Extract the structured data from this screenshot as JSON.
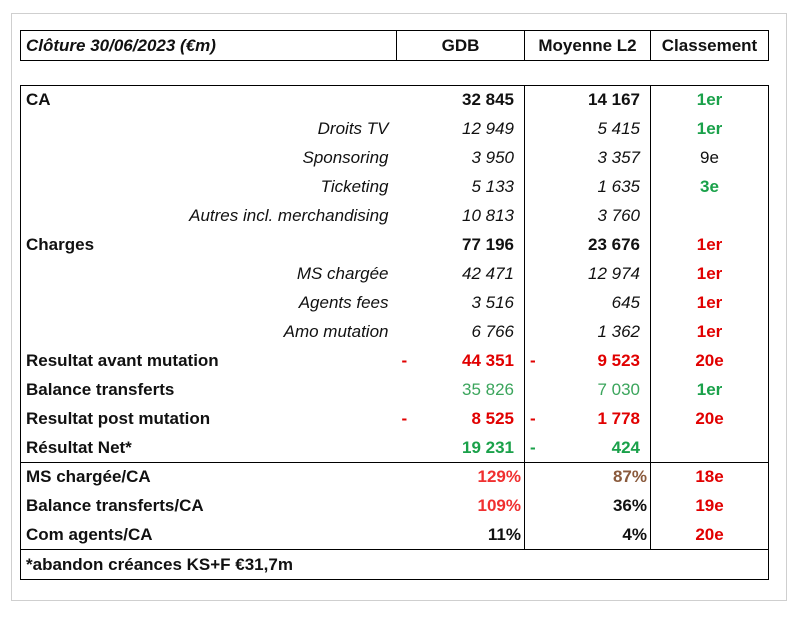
{
  "header": {
    "title": "Clôture 30/06/2023 (€m)",
    "col_gdb": "GDB",
    "col_avg": "Moyenne L2",
    "col_rank": "Classement"
  },
  "rows": [
    {
      "label": "CA",
      "gdb": "32 845",
      "avg": "14 167",
      "rank": "1er",
      "rank_color": "#1aa14a"
    },
    {
      "label": "Droits TV",
      "gdb": "12 949",
      "avg": "5 415",
      "rank": "1er",
      "rank_color": "#1aa14a"
    },
    {
      "label": "Sponsoring",
      "gdb": "3 950",
      "avg": "3 357",
      "rank": "9e",
      "rank_color": "#111111"
    },
    {
      "label": "Ticketing",
      "gdb": "5 133",
      "avg": "1 635",
      "rank": "3e",
      "rank_color": "#1aa14a"
    },
    {
      "label": "Autres incl. merchandising",
      "gdb": "10 813",
      "avg": "3 760",
      "rank": ""
    },
    {
      "label": "Charges",
      "gdb": "77 196",
      "avg": "23 676",
      "rank": "1er",
      "rank_color": "#e10000"
    },
    {
      "label": "MS chargée",
      "gdb": "42 471",
      "avg": "12 974",
      "rank": "1er",
      "rank_color": "#e10000"
    },
    {
      "label": "Agents fees",
      "gdb": "3 516",
      "avg": "645",
      "rank": "1er",
      "rank_color": "#e10000"
    },
    {
      "label": "Amo mutation",
      "gdb": "6 766",
      "avg": "1 362",
      "rank": "1er",
      "rank_color": "#e10000"
    },
    {
      "label": "Resultat avant mutation",
      "gdb_sign": "-",
      "gdb": "44 351",
      "avg_sign": "-",
      "avg": "9 523",
      "rank": "20e",
      "rank_color": "#e10000"
    },
    {
      "label": "Balance transferts",
      "gdb": "35 826",
      "avg": "7 030",
      "rank": "1er",
      "rank_color": "#1aa14a"
    },
    {
      "label": "Resultat post mutation",
      "gdb_sign": "-",
      "gdb": "8 525",
      "avg_sign": "-",
      "avg": "1 778",
      "rank": "20e",
      "rank_color": "#e10000"
    },
    {
      "label": "Résultat Net*",
      "gdb": "19 231",
      "avg_sign": "-",
      "avg": "424",
      "rank": ""
    },
    {
      "label": "MS chargée/CA",
      "gdb": "129%",
      "avg": "87%",
      "rank": "18e",
      "rank_color": "#e10000"
    },
    {
      "label": "Balance transferts/CA",
      "gdb": "109%",
      "avg": "36%",
      "rank": "19e",
      "rank_color": "#e10000"
    },
    {
      "label": "Com agents/CA",
      "gdb": "11%",
      "avg": "4%",
      "rank": "20e",
      "rank_color": "#e10000"
    }
  ],
  "footnote": "*abandon créances KS+F €31,7m"
}
